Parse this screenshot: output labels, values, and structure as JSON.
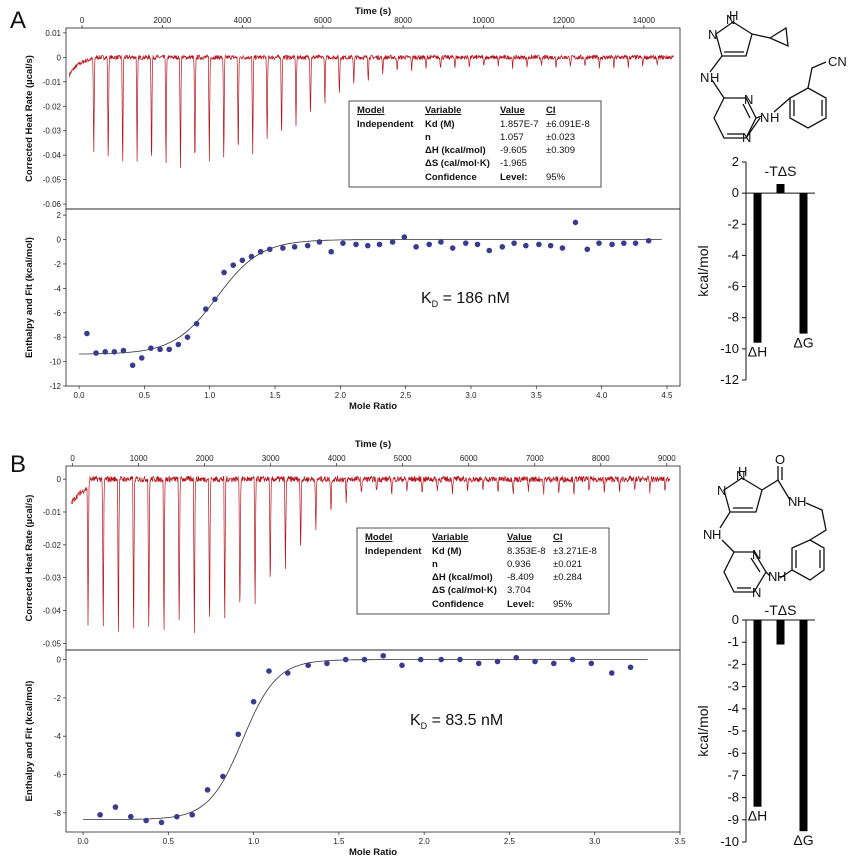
{
  "chart_data": [
    {
      "panel": "A",
      "type": "line",
      "role": "raw-thermogram",
      "title": "",
      "xlabel": "Time (s)",
      "ylabel": "Corrected Heat Rate (µcal/s)",
      "xlim": [
        -400,
        14900
      ],
      "ylim": [
        -0.062,
        0.012
      ],
      "xticks": [
        "0",
        "2000",
        "4000",
        "6000",
        "8000",
        "10000",
        "12000",
        "14000"
      ],
      "yticks": [
        "0.01",
        "0",
        "-0.01",
        "-0.02",
        "-0.03",
        "-0.04",
        "-0.05",
        "-0.06"
      ],
      "injections": {
        "count": 40,
        "start_s": 270,
        "interval_s": 360,
        "peak_depths_ucal_s": [
          -0.04,
          -0.044,
          -0.044,
          -0.044,
          -0.044,
          -0.044,
          -0.046,
          -0.045,
          -0.043,
          -0.043,
          -0.04,
          -0.04,
          -0.036,
          -0.032,
          -0.028,
          -0.024,
          -0.019,
          -0.015,
          -0.011,
          -0.009,
          -0.007,
          -0.006,
          -0.005,
          -0.005,
          -0.004,
          -0.004,
          -0.004,
          -0.004,
          -0.004,
          -0.004,
          -0.004,
          -0.004,
          -0.004,
          -0.004,
          -0.004,
          -0.004,
          -0.004,
          -0.004,
          -0.004,
          -0.004
        ]
      },
      "color": "#b3161e"
    },
    {
      "panel": "A",
      "type": "scatter",
      "role": "binding-isotherm",
      "xlabel": "Mole Ratio",
      "ylabel": "Enthalpy and Fit (kcal/mol)",
      "xlim": [
        -0.1,
        4.6
      ],
      "ylim": [
        -12,
        2.5
      ],
      "xticks": [
        "0.0",
        "0.5",
        "1.0",
        "1.5",
        "2.0",
        "2.5",
        "3.0",
        "3.5",
        "4.0",
        "4.5"
      ],
      "yticks": [
        "2",
        "0",
        "-2",
        "-4",
        "-6",
        "-8",
        "-10",
        "-12"
      ],
      "x": [
        0.06,
        0.13,
        0.2,
        0.27,
        0.34,
        0.41,
        0.48,
        0.55,
        0.62,
        0.69,
        0.76,
        0.83,
        0.9,
        0.97,
        1.04,
        1.11,
        1.18,
        1.25,
        1.32,
        1.39,
        1.46,
        1.56,
        1.65,
        1.75,
        1.84,
        1.93,
        2.02,
        2.12,
        2.21,
        2.3,
        2.4,
        2.49,
        2.58,
        2.68,
        2.77,
        2.86,
        2.96,
        3.05,
        3.14,
        3.24,
        3.33,
        3.42,
        3.52,
        3.61,
        3.7,
        3.8,
        3.89,
        3.98,
        4.08,
        4.17,
        4.26,
        4.36
      ],
      "y": [
        -7.7,
        -9.3,
        -9.2,
        -9.2,
        -9.1,
        -10.3,
        -9.7,
        -8.9,
        -9.0,
        -9.0,
        -8.6,
        -8.0,
        -6.9,
        -5.7,
        -4.9,
        -2.7,
        -2.1,
        -1.7,
        -1.4,
        -1.0,
        -0.8,
        -0.7,
        -0.6,
        -0.5,
        -0.2,
        -1.0,
        -0.3,
        -0.4,
        -0.5,
        -0.4,
        -0.2,
        0.2,
        -0.6,
        -0.4,
        -0.2,
        -0.7,
        -0.3,
        -0.4,
        -0.9,
        -0.6,
        -0.3,
        -0.5,
        -0.4,
        -0.5,
        -0.7,
        1.4,
        -0.8,
        -0.3,
        -0.4,
        -0.3,
        -0.3,
        -0.1
      ],
      "fit": {
        "dH": -9.4,
        "n": 1.057,
        "sharpness": 6.0
      },
      "annotation": {
        "prefix": "K",
        "sub": "D",
        "text": " = 186 nM"
      },
      "color": "#3b3a8f"
    },
    {
      "panel": "A",
      "type": "bar",
      "role": "thermodynamic-signature",
      "ylabel": "kcal/mol",
      "ylim": [
        -12,
        2
      ],
      "yticks": [
        "2",
        "0",
        "-2",
        "-4",
        "-6",
        "-8",
        "-10",
        "-12"
      ],
      "categories": [
        "ΔH",
        "-TΔS",
        "ΔG"
      ],
      "values": [
        -9.605,
        0.586,
        -9.02
      ]
    },
    {
      "panel": "B",
      "type": "line",
      "role": "raw-thermogram",
      "xlabel": "Time (s)",
      "ylabel": "Corrected Heat Rate (µcal/s)",
      "xlim": [
        -100,
        9200
      ],
      "ylim": [
        -0.052,
        0.004
      ],
      "xticks": [
        "0",
        "1000",
        "2000",
        "3000",
        "4000",
        "5000",
        "6000",
        "7000",
        "8000",
        "9000"
      ],
      "yticks": [
        "0",
        "-0.01",
        "-0.02",
        "-0.03",
        "-0.04",
        "-0.05"
      ],
      "injections": {
        "count": 39,
        "start_s": 220,
        "interval_s": 230,
        "peak_depths_ucal_s": [
          -0.046,
          -0.047,
          -0.048,
          -0.047,
          -0.047,
          -0.047,
          -0.046,
          -0.046,
          -0.045,
          -0.043,
          -0.041,
          -0.038,
          -0.033,
          -0.028,
          -0.022,
          -0.016,
          -0.01,
          -0.007,
          -0.005,
          -0.004,
          -0.004,
          -0.004,
          -0.004,
          -0.004,
          -0.004,
          -0.004,
          -0.004,
          -0.004,
          -0.004,
          -0.004,
          -0.004,
          -0.004,
          -0.004,
          -0.004,
          -0.004,
          -0.004,
          -0.004,
          -0.004,
          -0.004
        ]
      },
      "color": "#b3161e"
    },
    {
      "panel": "B",
      "type": "scatter",
      "role": "binding-isotherm",
      "xlabel": "Mole Ratio",
      "ylabel": "Enthalpy and Fit (kcal/mol)",
      "xlim": [
        -0.1,
        3.5
      ],
      "ylim": [
        -9,
        0.5
      ],
      "xticks": [
        "0.0",
        "0.5",
        "1.0",
        "1.5",
        "2.0",
        "2.5",
        "3.0",
        "3.5"
      ],
      "yticks": [
        "0",
        "-2",
        "-4",
        "-6",
        "-8"
      ],
      "x": [
        0.1,
        0.19,
        0.28,
        0.37,
        0.46,
        0.55,
        0.64,
        0.73,
        0.82,
        0.91,
        1.0,
        1.09,
        1.2,
        1.32,
        1.43,
        1.54,
        1.65,
        1.76,
        1.87,
        1.98,
        2.1,
        2.21,
        2.32,
        2.43,
        2.54,
        2.65,
        2.76,
        2.87,
        2.98,
        3.1,
        3.21
      ],
      "y": [
        -8.1,
        -7.7,
        -8.2,
        -8.4,
        -8.5,
        -8.2,
        -8.1,
        -6.8,
        -6.1,
        -3.9,
        -2.2,
        -0.6,
        -0.7,
        -0.3,
        -0.2,
        0.0,
        0.0,
        0.2,
        -0.3,
        0.0,
        0.0,
        0.0,
        -0.2,
        -0.1,
        0.1,
        -0.1,
        -0.2,
        0.0,
        -0.2,
        -0.7,
        -0.4
      ],
      "fit": {
        "dH": -8.35,
        "n": 0.936,
        "sharpness": 10.0
      },
      "annotation": {
        "prefix": "K",
        "sub": "D",
        "text": " = 83.5 nM"
      },
      "color": "#3b3a8f"
    },
    {
      "panel": "B",
      "type": "bar",
      "role": "thermodynamic-signature",
      "ylabel": "kcal/mol",
      "ylim": [
        -10,
        0
      ],
      "yticks": [
        "0",
        "-1",
        "-2",
        "-3",
        "-4",
        "-5",
        "-6",
        "-7",
        "-8",
        "-9",
        "-10"
      ],
      "categories": [
        "ΔH",
        "-TΔS",
        "ΔG"
      ],
      "values": [
        -8.409,
        -1.104,
        -9.513
      ]
    }
  ],
  "panels": [
    {
      "letter": "A",
      "table": {
        "header": [
          "Model",
          "Variable",
          "Value",
          "CI"
        ],
        "rows": [
          [
            "Independent",
            "Kd (M)",
            "1.857E-7",
            "±6.091E-8"
          ],
          [
            "",
            "n",
            "1.057",
            "±0.023"
          ],
          [
            "",
            "ΔH (kcal/mol)",
            "-9.605",
            "±0.309"
          ],
          [
            "",
            "ΔS (cal/mol·K)",
            "-1.965",
            ""
          ],
          [
            "",
            "Confidence",
            "Level:",
            "95%"
          ]
        ]
      },
      "molecule": {
        "labels": [
          "H",
          "N",
          "N",
          "N",
          "H",
          "N",
          "N",
          "N",
          "H",
          "CN"
        ]
      }
    },
    {
      "letter": "B",
      "table": {
        "header": [
          "Model",
          "Variable",
          "Value",
          "CI"
        ],
        "rows": [
          [
            "Independent",
            "Kd (M)",
            "8.353E-8",
            "±3.271E-8"
          ],
          [
            "",
            "n",
            "0.936",
            "±0.021"
          ],
          [
            "",
            "ΔH (kcal/mol)",
            "-8.409",
            "±0.284"
          ],
          [
            "",
            "ΔS (cal/mol·K)",
            "3.704",
            ""
          ],
          [
            "",
            "Confidence",
            "Level:",
            "95%"
          ]
        ]
      },
      "molecule": {
        "labels": [
          "H",
          "N",
          "N",
          "O",
          "N",
          "H",
          "N",
          "H",
          "N",
          "N",
          "N",
          "H"
        ]
      }
    }
  ]
}
